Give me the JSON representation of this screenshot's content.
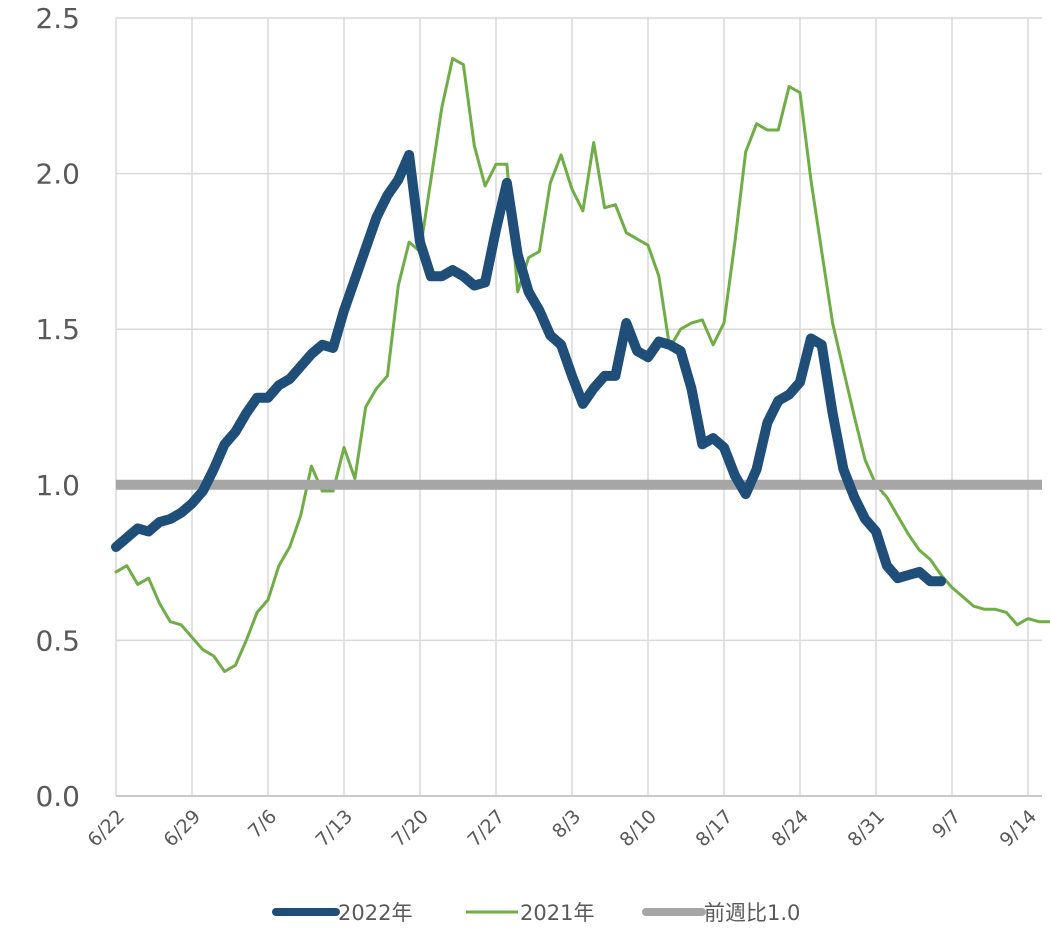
{
  "chart_data": {
    "type": "line",
    "title": "",
    "xlabel": "",
    "ylabel": "",
    "ylim": [
      0,
      2.5
    ],
    "yticks": [
      "0.0",
      "0.5",
      "1.0",
      "1.5",
      "2.0",
      "2.5"
    ],
    "x_tick_labels": [
      "6/22",
      "6/29",
      "7/6",
      "7/13",
      "7/20",
      "7/27",
      "8/3",
      "8/10",
      "8/17",
      "8/24",
      "8/31",
      "9/7",
      "9/14"
    ],
    "grid": "vertical and horizontal",
    "legend_position": "bottom",
    "series": [
      {
        "name": "2022年",
        "color": "#1f4e79",
        "style": "thick",
        "values": [
          0.8,
          0.83,
          0.86,
          0.85,
          0.88,
          0.89,
          0.91,
          0.94,
          0.98,
          1.05,
          1.13,
          1.17,
          1.23,
          1.28,
          1.28,
          1.32,
          1.34,
          1.38,
          1.42,
          1.45,
          1.44,
          1.56,
          1.66,
          1.76,
          1.86,
          1.93,
          1.98,
          2.06,
          1.78,
          1.67,
          1.67,
          1.69,
          1.67,
          1.64,
          1.65,
          1.82,
          1.97,
          1.74,
          1.62,
          1.56,
          1.48,
          1.45,
          1.35,
          1.26,
          1.31,
          1.35,
          1.35,
          1.52,
          1.43,
          1.41,
          1.46,
          1.45,
          1.43,
          1.31,
          1.13,
          1.15,
          1.12,
          1.03,
          0.97,
          1.05,
          1.2,
          1.27,
          1.29,
          1.33,
          1.47,
          1.45,
          1.23,
          1.05,
          0.96,
          0.89,
          0.85,
          0.74,
          0.7,
          0.71,
          0.72,
          0.69,
          0.69
        ]
      },
      {
        "name": "2021年",
        "color": "#70ad47",
        "style": "thin",
        "values": [
          0.72,
          0.74,
          0.68,
          0.7,
          0.62,
          0.56,
          0.55,
          0.51,
          0.47,
          0.45,
          0.4,
          0.42,
          0.5,
          0.59,
          0.63,
          0.74,
          0.8,
          0.9,
          1.06,
          0.98,
          0.98,
          1.12,
          1.02,
          1.25,
          1.31,
          1.35,
          1.64,
          1.78,
          1.75,
          1.98,
          2.21,
          2.37,
          2.35,
          2.09,
          1.96,
          2.03,
          2.03,
          1.62,
          1.73,
          1.75,
          1.97,
          2.06,
          1.95,
          1.88,
          2.1,
          1.89,
          1.9,
          1.81,
          1.79,
          1.77,
          1.67,
          1.44,
          1.5,
          1.52,
          1.53,
          1.45,
          1.52,
          1.78,
          2.07,
          2.16,
          2.14,
          2.14,
          2.28,
          2.26,
          1.98,
          1.75,
          1.52,
          1.37,
          1.22,
          1.08,
          1.0,
          0.96,
          0.9,
          0.84,
          0.79,
          0.76,
          0.71,
          0.67,
          0.64,
          0.61,
          0.6,
          0.6,
          0.59,
          0.55,
          0.57,
          0.56,
          0.56,
          0.57
        ]
      },
      {
        "name": "前週比1.0",
        "color": "#a6a6a6",
        "style": "baseline",
        "value": 1.0
      }
    ]
  },
  "legend": {
    "item1": "2022年",
    "item2": "2021年",
    "item3": "前週比1.0"
  }
}
